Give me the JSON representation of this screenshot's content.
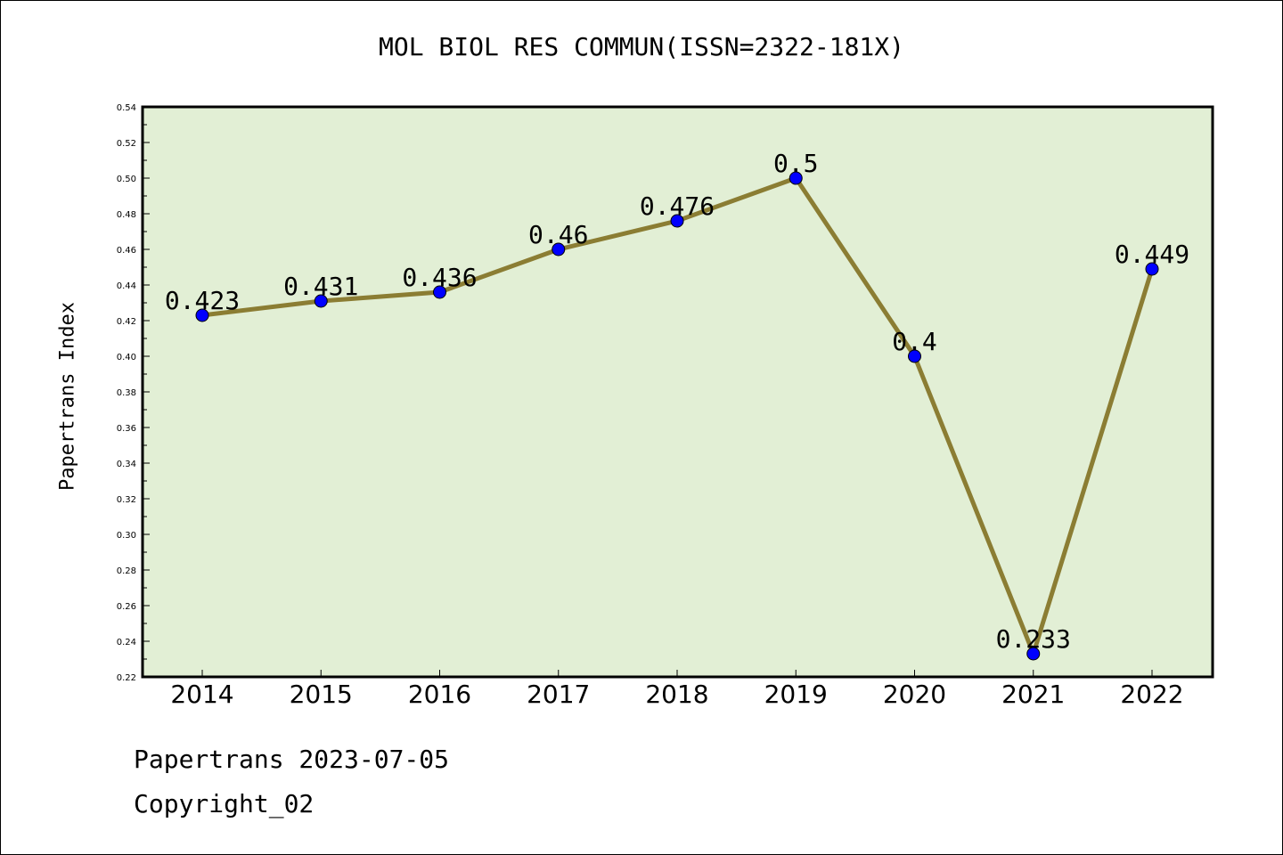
{
  "chart_data": {
    "type": "line",
    "title": "MOL BIOL RES COMMUN(ISSN=2322-181X)",
    "xlabel": "",
    "ylabel": "Papertrans Index",
    "categories": [
      "2014",
      "2015",
      "2016",
      "2017",
      "2018",
      "2019",
      "2020",
      "2021",
      "2022"
    ],
    "values": [
      0.423,
      0.431,
      0.436,
      0.46,
      0.476,
      0.5,
      0.4,
      0.233,
      0.449
    ],
    "data_labels": [
      "0.423",
      "0.431",
      "0.436",
      "0.46",
      "0.476",
      "0.5",
      "0.4",
      "0.233",
      "0.449"
    ],
    "ylim": [
      0.22,
      0.54
    ],
    "yticks": [
      "0.22",
      "0.24",
      "0.26",
      "0.28",
      "0.30",
      "0.32",
      "0.34",
      "0.36",
      "0.38",
      "0.40",
      "0.42",
      "0.44",
      "0.46",
      "0.48",
      "0.50",
      "0.52",
      "0.54"
    ],
    "grid": false,
    "colors": {
      "plot_background": "#e2efd5",
      "line": "#8b7d33",
      "marker": "#0000ff"
    }
  },
  "footer": {
    "line1": "Papertrans 2023-07-05",
    "line2": "Copyright_02"
  }
}
